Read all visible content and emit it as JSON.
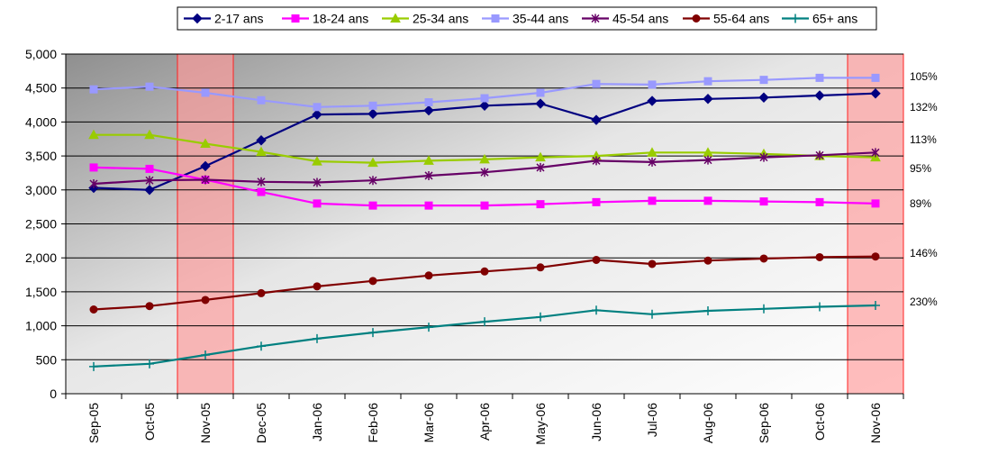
{
  "chart_data": {
    "type": "line",
    "categories": [
      "Sep-05",
      "Oct-05",
      "Nov-05",
      "Dec-05",
      "Jan-06",
      "Feb-06",
      "Mar-06",
      "Apr-06",
      "May-06",
      "Jun-06",
      "Jul-06",
      "Aug-06",
      "Sep-06",
      "Oct-06",
      "Nov-06"
    ],
    "ylim": [
      0,
      5000
    ],
    "yticks": [
      0,
      500,
      1000,
      1500,
      2000,
      2500,
      3000,
      3500,
      4000,
      4500,
      5000
    ],
    "ytick_labels": [
      "0",
      "500",
      "1,000",
      "1,500",
      "2,000",
      "2,500",
      "3,000",
      "3,500",
      "4,000",
      "4,500",
      "5,000"
    ],
    "grid": "horizontal",
    "legend_position": "top",
    "highlighted_categories": [
      "Nov-05",
      "Nov-06"
    ],
    "highlight_color": "#ff9a9a",
    "series": [
      {
        "name": "2-17 ans",
        "color": "#000080",
        "marker": "diamond",
        "values": [
          3030,
          3000,
          3350,
          3730,
          4110,
          4120,
          4170,
          4240,
          4270,
          4030,
          4310,
          4340,
          4360,
          4390,
          4420
        ]
      },
      {
        "name": "18-24 ans",
        "color": "#ff00ff",
        "marker": "square",
        "values": [
          3330,
          3310,
          3150,
          2970,
          2800,
          2770,
          2770,
          2770,
          2790,
          2820,
          2840,
          2840,
          2830,
          2820,
          2800
        ]
      },
      {
        "name": "25-34 ans",
        "color": "#99cc00",
        "marker": "triangle",
        "values": [
          3810,
          3810,
          3680,
          3560,
          3420,
          3400,
          3430,
          3450,
          3480,
          3500,
          3550,
          3550,
          3530,
          3500,
          3480
        ]
      },
      {
        "name": "35-44 ans",
        "color": "#9999ff",
        "marker": "square",
        "values": [
          4480,
          4520,
          4430,
          4320,
          4220,
          4240,
          4290,
          4350,
          4430,
          4560,
          4550,
          4600,
          4620,
          4650,
          4650
        ]
      },
      {
        "name": "45-54 ans",
        "color": "#660066",
        "marker": "star",
        "values": [
          3090,
          3140,
          3150,
          3120,
          3110,
          3140,
          3210,
          3260,
          3330,
          3430,
          3410,
          3440,
          3480,
          3510,
          3550
        ]
      },
      {
        "name": "55-64 ans",
        "color": "#800000",
        "marker": "circle",
        "values": [
          1240,
          1290,
          1380,
          1480,
          1580,
          1660,
          1740,
          1800,
          1860,
          1970,
          1910,
          1960,
          1990,
          2010,
          2020
        ]
      },
      {
        "name": "65+ ans",
        "color": "#008080",
        "marker": "plus",
        "values": [
          400,
          440,
          570,
          700,
          810,
          900,
          980,
          1060,
          1130,
          1230,
          1170,
          1220,
          1250,
          1280,
          1300
        ]
      }
    ],
    "annotations": [
      "105%",
      "132%",
      "113%",
      "95%",
      "89%",
      "146%",
      "230%"
    ]
  }
}
